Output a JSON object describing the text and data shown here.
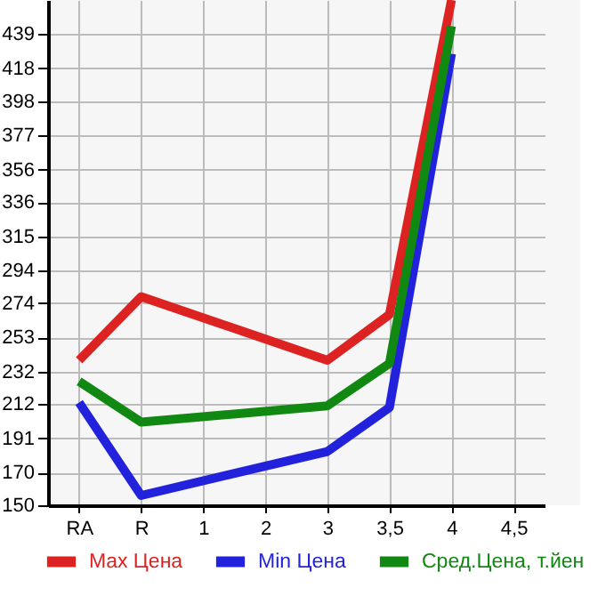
{
  "chart_data": {
    "type": "line",
    "categories": [
      "RA",
      "R",
      "1",
      "2",
      "3",
      "3,5",
      "4",
      "4,5"
    ],
    "series": [
      {
        "name": "Max Цена",
        "color": "#dd2222",
        "values": [
          239,
          278,
          null,
          null,
          239,
          267,
          460,
          null
        ]
      },
      {
        "name": "Min Цена",
        "color": "#2222dd",
        "values": [
          213,
          156,
          null,
          null,
          183,
          210,
          427,
          null
        ]
      },
      {
        "name": "Сред.Цена, т.йен",
        "color": "#118811",
        "values": [
          226,
          201,
          null,
          null,
          211,
          237,
          444,
          null
        ]
      }
    ],
    "ylim": [
      150,
      460
    ],
    "yticks": [
      150,
      170,
      191,
      212,
      232,
      253,
      274,
      294,
      315,
      336,
      356,
      377,
      398,
      418,
      439
    ],
    "grid": true,
    "legend": "bottom",
    "marker": "none",
    "line_style": "solid"
  }
}
